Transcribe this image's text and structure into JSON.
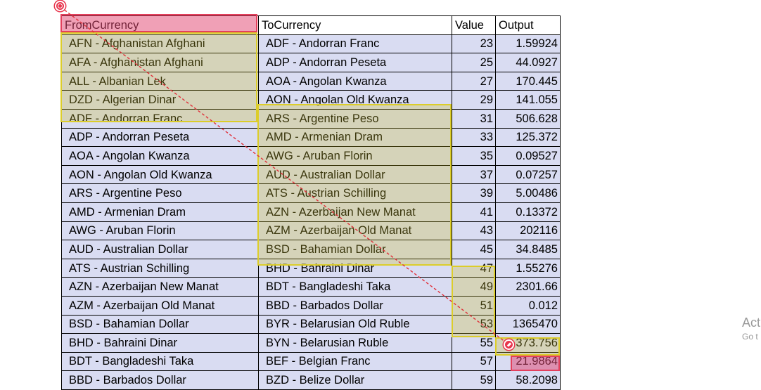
{
  "headers": {
    "from": "FromCurrency",
    "to": "ToCurrency",
    "value": "Value",
    "output": "Output"
  },
  "rows": [
    {
      "from": "AFN - Afghanistan Afghani",
      "to": "ADF - Andorran Franc",
      "value": "23",
      "output": "1.59924"
    },
    {
      "from": "AFA - Afghanistan Afghani",
      "to": "ADP - Andorran Peseta",
      "value": "25",
      "output": "44.0927"
    },
    {
      "from": "ALL - Albanian Lek",
      "to": "AOA - Angolan Kwanza",
      "value": "27",
      "output": "170.445"
    },
    {
      "from": "DZD - Algerian Dinar",
      "to": "AON - Angolan Old Kwanza",
      "value": "29",
      "output": "141.055"
    },
    {
      "from": "ADF - Andorran Franc",
      "to": "ARS - Argentine Peso",
      "value": "31",
      "output": "506.628"
    },
    {
      "from": "ADP - Andorran Peseta",
      "to": "AMD - Armenian Dram",
      "value": "33",
      "output": "125.372"
    },
    {
      "from": "AOA - Angolan Kwanza",
      "to": "AWG - Aruban Florin",
      "value": "35",
      "output": "0.09527"
    },
    {
      "from": "AON - Angolan Old Kwanza",
      "to": "AUD - Australian Dollar",
      "value": "37",
      "output": "0.07257"
    },
    {
      "from": "ARS - Argentine Peso",
      "to": "ATS - Austrian Schilling",
      "value": "39",
      "output": "5.00486"
    },
    {
      "from": "AMD - Armenian Dram",
      "to": "AZN - Azerbaijan New Manat",
      "value": "41",
      "output": "0.13372"
    },
    {
      "from": "AWG - Aruban Florin",
      "to": "AZM - Azerbaijan Old Manat",
      "value": "43",
      "output": "202116"
    },
    {
      "from": "AUD - Australian Dollar",
      "to": "BSD - Bahamian Dollar",
      "value": "45",
      "output": "34.8485"
    },
    {
      "from": "ATS - Austrian Schilling",
      "to": "BHD - Bahraini Dinar",
      "value": "47",
      "output": "1.55276"
    },
    {
      "from": "AZN - Azerbaijan New Manat",
      "to": "BDT - Bangladeshi Taka",
      "value": "49",
      "output": "2301.66"
    },
    {
      "from": "AZM - Azerbaijan Old Manat",
      "to": "BBD - Barbados Dollar",
      "value": "51",
      "output": "0.012"
    },
    {
      "from": "BSD - Bahamian Dollar",
      "to": "BYR - Belarusian Old Ruble",
      "value": "53",
      "output": "1365470"
    },
    {
      "from": "BHD - Bahraini Dinar",
      "to": "BYN - Belarusian Ruble",
      "value": "55",
      "output": "373.756"
    },
    {
      "from": "BDT - Bangladeshi Taka",
      "to": "BEF - Belgian Franc",
      "value": "57",
      "output": "21.9864"
    },
    {
      "from": "BBD - Barbados Dollar",
      "to": "BZD - Belize Dollar",
      "value": "59",
      "output": "58.2098"
    }
  ],
  "watermark": {
    "line1": "Act",
    "line2": "Go t"
  }
}
